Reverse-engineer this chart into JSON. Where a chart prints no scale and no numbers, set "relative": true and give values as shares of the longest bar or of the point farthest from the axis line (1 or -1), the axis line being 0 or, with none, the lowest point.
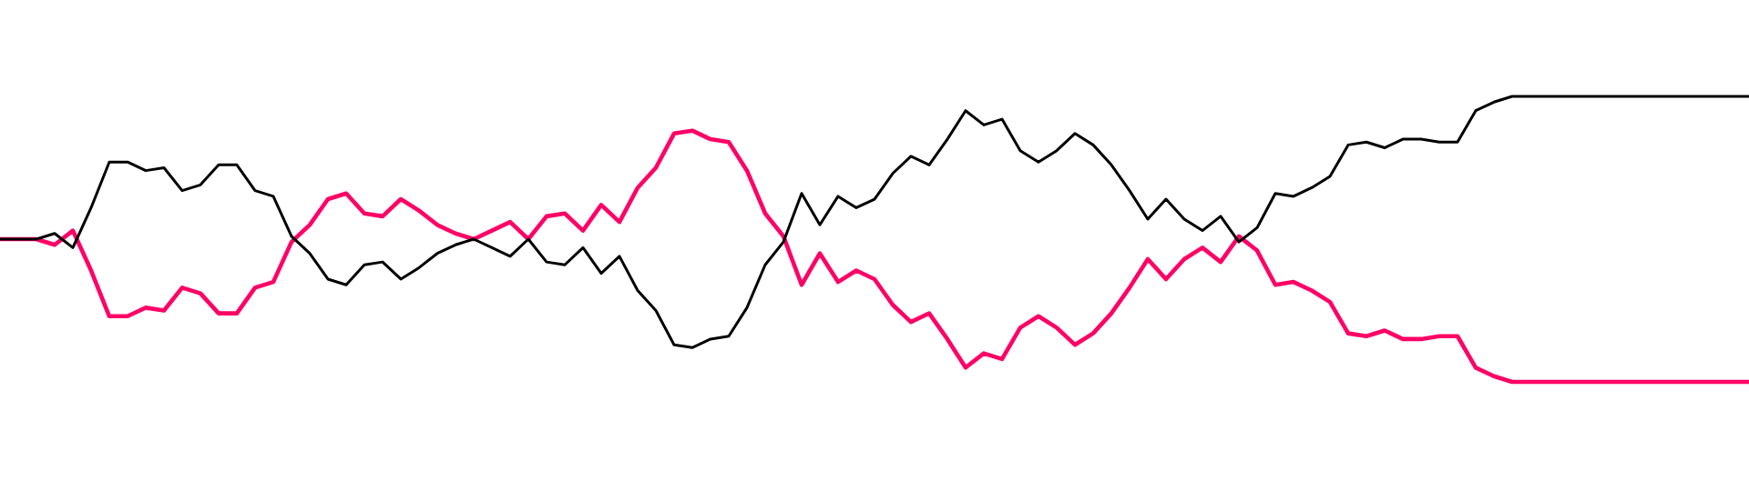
{
  "chart_data": {
    "type": "line",
    "relative": true,
    "legend": false,
    "categories": [
      null,
      null,
      null,
      null,
      null,
      null,
      null,
      null,
      null,
      null,
      null,
      null,
      null,
      null,
      null,
      null,
      null,
      null,
      null,
      null,
      null,
      null,
      null,
      null,
      null,
      null,
      null,
      null,
      null,
      null,
      null,
      null,
      null,
      null,
      null,
      null,
      null,
      null,
      null,
      null,
      null,
      null,
      null,
      null,
      null,
      null,
      null,
      null,
      null,
      null,
      null,
      null,
      null,
      null,
      null,
      null,
      null,
      null,
      null,
      null,
      null,
      null,
      null,
      null,
      null,
      null,
      null,
      null,
      null,
      null,
      null,
      null,
      null,
      null,
      null,
      null,
      null,
      null,
      null,
      null,
      null,
      null,
      null,
      null,
      null,
      null,
      null,
      null,
      null,
      null,
      null,
      null,
      null,
      null,
      null,
      null,
      null
    ],
    "series": [
      {
        "color": "#000000",
        "values": [
          0.5,
          0.5,
          0.5,
          0.52,
          0.47,
          0.61,
          0.77,
          0.77,
          0.74,
          0.75,
          0.67,
          0.69,
          0.76,
          0.76,
          0.67,
          0.65,
          0.51,
          0.45,
          0.36,
          0.34,
          0.41,
          0.42,
          0.36,
          0.4,
          0.45,
          0.48,
          0.5,
          0.47,
          0.44,
          0.5,
          0.42,
          0.41,
          0.47,
          0.38,
          0.44,
          0.32,
          0.25,
          0.13,
          0.12,
          0.15,
          0.16,
          0.26,
          0.41,
          0.49,
          0.66,
          0.55,
          0.65,
          0.61,
          0.64,
          0.73,
          0.79,
          0.76,
          0.85,
          0.95,
          0.9,
          0.92,
          0.81,
          0.77,
          0.81,
          0.87,
          0.83,
          0.76,
          0.67,
          0.57,
          0.64,
          0.57,
          0.53,
          0.58,
          0.49,
          0.54,
          0.66,
          0.65,
          0.68,
          0.72,
          0.83,
          0.84,
          0.82,
          0.85,
          0.85,
          0.84,
          0.84,
          0.95,
          0.98,
          1,
          1,
          1,
          1,
          1,
          1,
          1,
          1,
          1,
          1,
          1,
          1,
          1,
          1
        ]
      },
      {
        "color": "#ff0066",
        "values": [
          0.5,
          0.5,
          0.5,
          0.48,
          0.53,
          0.39,
          0.23,
          0.23,
          0.26,
          0.25,
          0.33,
          0.31,
          0.24,
          0.24,
          0.33,
          0.35,
          0.49,
          0.55,
          0.64,
          0.66,
          0.59,
          0.58,
          0.64,
          0.6,
          0.55,
          0.52,
          0.5,
          0.53,
          0.56,
          0.5,
          0.58,
          0.59,
          0.53,
          0.62,
          0.56,
          0.68,
          0.75,
          0.87,
          0.88,
          0.85,
          0.84,
          0.74,
          0.59,
          0.51,
          0.34,
          0.45,
          0.35,
          0.39,
          0.36,
          0.27,
          0.21,
          0.24,
          0.15,
          0.05,
          0.1,
          0.08,
          0.19,
          0.23,
          0.19,
          0.13,
          0.17,
          0.24,
          0.33,
          0.43,
          0.36,
          0.43,
          0.47,
          0.42,
          0.51,
          0.46,
          0.34,
          0.35,
          0.32,
          0.28,
          0.17,
          0.16,
          0.18,
          0.15,
          0.15,
          0.16,
          0.16,
          0.05,
          0.02,
          0,
          0,
          0,
          0,
          0,
          0,
          0,
          0,
          0,
          0,
          0,
          0,
          0,
          0
        ]
      }
    ]
  }
}
